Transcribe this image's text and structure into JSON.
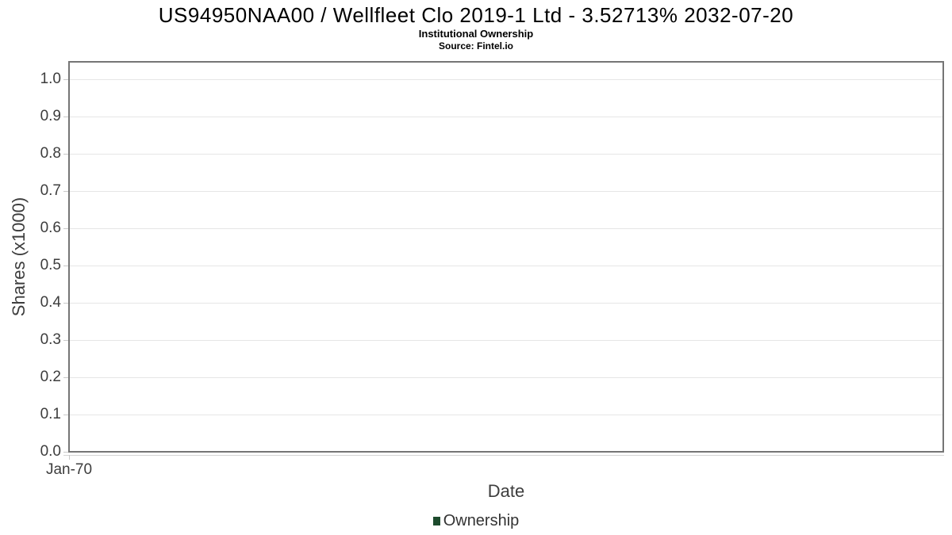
{
  "chart": {
    "title": "US94950NAA00 / Wellfleet Clo 2019-1 Ltd - 3.52713% 2032-07-20",
    "subtitle": "Institutional Ownership",
    "source": "Source: Fintel.io",
    "yaxis": {
      "label": "Shares (x1000)",
      "tick_values": [
        1.0,
        0.9,
        0.8,
        0.7,
        0.6,
        0.5,
        0.4,
        0.3,
        0.2,
        0.1,
        0.0
      ]
    },
    "xaxis": {
      "label": "Date",
      "ticks": [
        "Jan-70"
      ]
    },
    "legend": {
      "items": [
        {
          "label": "Ownership",
          "color": "#1d4b2d"
        }
      ]
    },
    "colors": {
      "grid": "#e6e6e6",
      "spine": "#757575",
      "tick_text": "#3d3d3d",
      "series_green": "#1d4b2d"
    }
  },
  "chart_data": {
    "type": "bar",
    "title": "US94950NAA00 / Wellfleet Clo 2019-1 Ltd - 3.52713% 2032-07-20",
    "subtitle": "Institutional Ownership",
    "source": "Source: Fintel.io",
    "xlabel": "Date",
    "ylabel": "Shares (x1000)",
    "x": [
      "Jan-70"
    ],
    "series": [
      {
        "name": "Ownership",
        "color": "#1d4b2d",
        "values": []
      }
    ],
    "ylim": [
      0.0,
      1.05
    ],
    "yticks": [
      0.0,
      0.1,
      0.2,
      0.3,
      0.4,
      0.5,
      0.6,
      0.7,
      0.8,
      0.9,
      1.0
    ],
    "grid": "horizontal",
    "legend_position": "bottom"
  }
}
